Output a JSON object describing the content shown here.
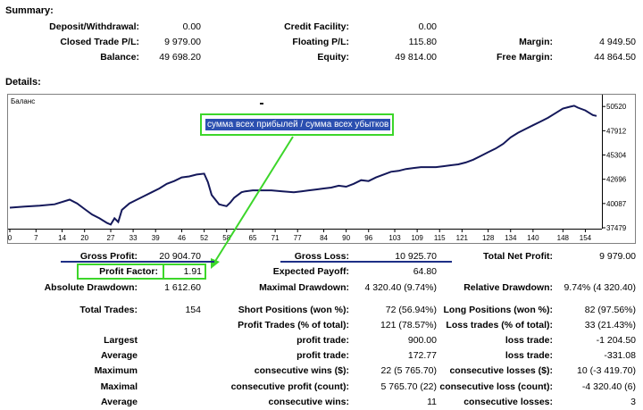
{
  "summary": {
    "title": "Summary:",
    "deposit_label": "Deposit/Withdrawal:",
    "deposit_value": "0.00",
    "credit_label": "Credit Facility:",
    "credit_value": "0.00",
    "closed_label": "Closed Trade P/L:",
    "closed_value": "9 979.00",
    "floating_label": "Floating P/L:",
    "floating_value": "115.80",
    "margin_label": "Margin:",
    "margin_value": "4 949.50",
    "balance_label": "Balance:",
    "balance_value": "49 698.20",
    "equity_label": "Equity:",
    "equity_value": "49 814.00",
    "free_margin_label": "Free Margin:",
    "free_margin_value": "44 864.50"
  },
  "details": {
    "title": "Details:",
    "chart_label": "Баланс",
    "annotation": "сумма всех прибылей / сумма всех убытков"
  },
  "chart_data": {
    "type": "line",
    "title": "Баланс",
    "xlabel": "",
    "ylabel": "",
    "x_ticks": [
      0,
      7,
      14,
      20,
      27,
      33,
      39,
      46,
      52,
      58,
      65,
      71,
      77,
      84,
      90,
      96,
      103,
      109,
      115,
      121,
      128,
      134,
      140,
      148,
      154
    ],
    "y_ticks": [
      50520,
      47912,
      45304,
      42696,
      40087,
      37479
    ],
    "ylim": [
      37479,
      51500
    ],
    "xlim": [
      0,
      157
    ],
    "series": [
      {
        "name": "Balance",
        "x": [
          0,
          4,
          8,
          12,
          16,
          18,
          20,
          22,
          24,
          26,
          27,
          28,
          29,
          30,
          32,
          34,
          36,
          38,
          40,
          42,
          44,
          46,
          48,
          50,
          52,
          53,
          54,
          56,
          57,
          58,
          59,
          60,
          61,
          62,
          63,
          65,
          67,
          70,
          73,
          76,
          78,
          80,
          82,
          84,
          86,
          88,
          90,
          92,
          94,
          96,
          98,
          100,
          102,
          104,
          106,
          108,
          110,
          112,
          114,
          116,
          118,
          120,
          122,
          124,
          126,
          128,
          130,
          132,
          134,
          136,
          138,
          140,
          142,
          144,
          146,
          148,
          150,
          151,
          152,
          154,
          156,
          157
        ],
        "y": [
          39640,
          39760,
          39860,
          40000,
          40500,
          40100,
          39500,
          38900,
          38500,
          38000,
          37820,
          38500,
          38100,
          39400,
          40100,
          40500,
          40900,
          41300,
          41700,
          42200,
          42500,
          42900,
          43000,
          43200,
          43300,
          42400,
          41000,
          40000,
          39900,
          39800,
          40200,
          40700,
          41000,
          41300,
          41400,
          41500,
          41500,
          41500,
          41400,
          41300,
          41400,
          41500,
          41600,
          41700,
          41800,
          42000,
          41900,
          42200,
          42600,
          42500,
          42900,
          43200,
          43500,
          43600,
          43800,
          43900,
          44000,
          44000,
          44000,
          44100,
          44200,
          44300,
          44500,
          44800,
          45200,
          45600,
          46000,
          46500,
          47200,
          47700,
          48100,
          48500,
          48900,
          49300,
          49800,
          50300,
          50500,
          50600,
          50400,
          50100,
          49600,
          49500
        ]
      }
    ]
  },
  "stats": {
    "gross_profit_label": "Gross Profit:",
    "gross_profit_value": "20 904.70",
    "gross_loss_label": "Gross Loss:",
    "gross_loss_value": "10 925.70",
    "total_net_label": "Total Net Profit:",
    "total_net_value": "9 979.00",
    "profit_factor_label": "Profit Factor:",
    "profit_factor_value": "1.91",
    "expected_payoff_label": "Expected Payoff:",
    "expected_payoff_value": "64.80",
    "abs_dd_label": "Absolute Drawdown:",
    "abs_dd_value": "1 612.60",
    "max_dd_label": "Maximal Drawdown:",
    "max_dd_value": "4 320.40 (9.74%)",
    "rel_dd_label": "Relative Drawdown:",
    "rel_dd_value": "9.74% (4 320.40)",
    "total_trades_label": "Total Trades:",
    "total_trades_value": "154",
    "short_label": "Short Positions (won %):",
    "short_value": "72 (56.94%)",
    "long_label": "Long Positions (won %):",
    "long_value": "82 (97.56%)",
    "profit_trades_label": "Profit Trades (% of total):",
    "profit_trades_value": "121 (78.57%)",
    "loss_trades_label": "Loss trades (% of total):",
    "loss_trades_value": "33 (21.43%)",
    "largest_label": "Largest",
    "largest_profit_label": "profit trade:",
    "largest_profit_value": "900.00",
    "largest_loss_label": "loss trade:",
    "largest_loss_value": "-1 204.50",
    "average_label": "Average",
    "average_profit_label": "profit trade:",
    "average_profit_value": "172.77",
    "average_loss_label": "loss trade:",
    "average_loss_value": "-331.08",
    "maximum_label": "Maximum",
    "max_wins_label": "consecutive wins ($):",
    "max_wins_value": "22 (5 765.70)",
    "max_losses_label": "consecutive losses ($):",
    "max_losses_value": "10 (-3 419.70)",
    "maximal_label": "Maximal",
    "maximal_profit_label": "consecutive profit (count):",
    "maximal_profit_value": "5 765.70 (22)",
    "maximal_loss_label": "consecutive loss (count):",
    "maximal_loss_value": "-4 320.40 (6)",
    "average2_label": "Average",
    "avg_wins_label": "consecutive wins:",
    "avg_wins_value": "11",
    "avg_losses_label": "consecutive losses:",
    "avg_losses_value": "3"
  }
}
